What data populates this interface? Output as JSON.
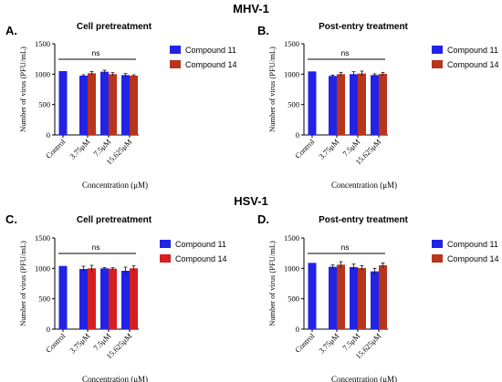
{
  "figure": {
    "section_top": "MHV-1",
    "section_bottom": "HSV-1",
    "x_axis_title": "Concentration (μM)",
    "y_axis_title": "Number of virus (PFU/mL)"
  },
  "colors": {
    "compound11": "#2323e6",
    "compound14": "#b8351d",
    "compound14_bottom": "#d42020",
    "error_bar": "#111111"
  },
  "chart_data": [
    {
      "type": "bar",
      "panel_letter": "A.",
      "title": "Cell pretreatment",
      "categories": [
        "Control",
        "3.75μM",
        "7.5μM",
        "15.625μM"
      ],
      "series": [
        {
          "name": "Compound 11",
          "values": [
            1050,
            975,
            1040,
            985
          ],
          "errors": [
            0,
            15,
            25,
            25
          ]
        },
        {
          "name": "Compound 14",
          "values": [
            null,
            1015,
            1000,
            975
          ],
          "errors": [
            null,
            30,
            25,
            15
          ]
        }
      ],
      "ylim": [
        0,
        1500
      ],
      "yticks": [
        0,
        500,
        1000,
        1500
      ],
      "xlabel": "Concentration (μM)",
      "ylabel": "Number of virus (PFU/mL)",
      "significance": "ns",
      "legend": "right"
    },
    {
      "type": "bar",
      "panel_letter": "B.",
      "title": "Post-entry treatment",
      "categories": [
        "Control",
        "3.75μM",
        "7.5μM",
        "15.625μM"
      ],
      "series": [
        {
          "name": "Compound 11",
          "values": [
            1045,
            970,
            1000,
            985
          ],
          "errors": [
            0,
            15,
            40,
            20
          ]
        },
        {
          "name": "Compound 14",
          "values": [
            null,
            1000,
            1010,
            1005
          ],
          "errors": [
            null,
            30,
            40,
            25
          ]
        }
      ],
      "ylim": [
        0,
        1500
      ],
      "yticks": [
        0,
        500,
        1000,
        1500
      ],
      "xlabel": "Concentration (μM)",
      "ylabel": "Number of virus (PFU/mL)",
      "significance": "ns",
      "legend": "right"
    },
    {
      "type": "bar",
      "panel_letter": "C.",
      "title": "Cell pretreatment",
      "categories": [
        "Control",
        "3.75μM",
        "7.5μM",
        "15.625μM"
      ],
      "series": [
        {
          "name": "Compound 11",
          "values": [
            1040,
            990,
            1000,
            960
          ],
          "errors": [
            0,
            45,
            10,
            60
          ]
        },
        {
          "name": "Compound 14",
          "values": [
            null,
            1000,
            995,
            1000
          ],
          "errors": [
            null,
            50,
            15,
            40
          ]
        }
      ],
      "ylim": [
        0,
        1500
      ],
      "yticks": [
        0,
        500,
        1000,
        1500
      ],
      "xlabel": "Concentration (μM)",
      "ylabel": "Number of virus (PFU/mL)",
      "significance": "ns",
      "legend": "right"
    },
    {
      "type": "bar",
      "panel_letter": "D.",
      "title": "Post-entry treatment",
      "categories": [
        "Control",
        "3.75μM",
        "7.5μM",
        "15.625μM"
      ],
      "series": [
        {
          "name": "Compound 11",
          "values": [
            1090,
            1025,
            1020,
            950
          ],
          "errors": [
            0,
            30,
            50,
            50
          ]
        },
        {
          "name": "Compound 14",
          "values": [
            null,
            1060,
            1005,
            1050
          ],
          "errors": [
            null,
            50,
            40,
            40
          ]
        }
      ],
      "ylim": [
        0,
        1500
      ],
      "yticks": [
        0,
        500,
        1000,
        1500
      ],
      "xlabel": "Concentration (μM)",
      "ylabel": "Number of virus (PFU/mL)",
      "significance": "ns",
      "legend": "right"
    }
  ]
}
